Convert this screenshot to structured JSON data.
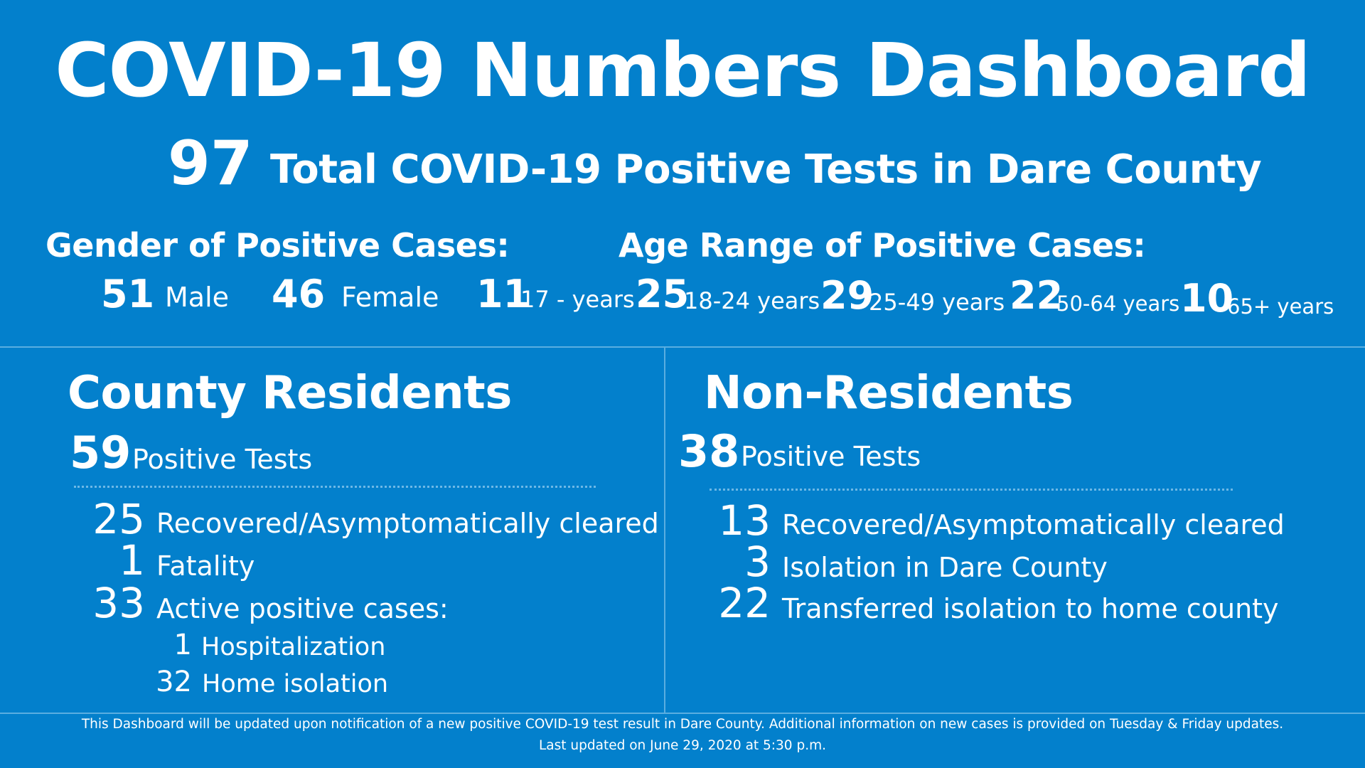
{
  "title": "COVID-19 Numbers Dashboard",
  "total": {
    "value": "97",
    "label": "Total COVID-19 Positive Tests in Dare County"
  },
  "gender": {
    "heading": "Gender of Positive Cases:",
    "items": [
      {
        "value": "51",
        "label": "Male"
      },
      {
        "value": "46",
        "label": "Female"
      }
    ]
  },
  "age": {
    "heading": "Age Range of Positive Cases:",
    "items": [
      {
        "value": "11",
        "label": "17 - years"
      },
      {
        "value": "25",
        "label": "18-24 years"
      },
      {
        "value": "29",
        "label": "25-49 years"
      },
      {
        "value": "22",
        "label": "50-64 years"
      },
      {
        "value": "10",
        "label": "65+ years"
      }
    ]
  },
  "residents": {
    "heading": "County Residents",
    "positive": {
      "value": "59",
      "label": "Positive Tests"
    },
    "stats": [
      {
        "value": "25",
        "label": "Recovered/Asymptomatically cleared"
      },
      {
        "value": "1",
        "label": "Fatality"
      },
      {
        "value": "33",
        "label": "Active positive cases:"
      }
    ],
    "active_breakdown": [
      {
        "value": "1",
        "label": "Hospitalization"
      },
      {
        "value": "32",
        "label": "Home isolation"
      }
    ]
  },
  "non_residents": {
    "heading": "Non-Residents",
    "positive": {
      "value": "38",
      "label": "Positive Tests"
    },
    "stats": [
      {
        "value": "13",
        "label": "Recovered/Asymptomatically cleared"
      },
      {
        "value": "3",
        "label": "Isolation in Dare County"
      },
      {
        "value": "22",
        "label": "Transferred isolation to home county"
      }
    ]
  },
  "footer": {
    "line1": "This Dashboard will be updated upon notification of a new positive COVID-19 test result in Dare County. Additional information on new cases is provided on Tuesday & Friday updates.",
    "line2": "Last updated on June 29, 2020 at 5:30  p.m."
  },
  "colors": {
    "background": "#0380cc",
    "text": "#ffffff",
    "divider": "#5aaee0"
  }
}
